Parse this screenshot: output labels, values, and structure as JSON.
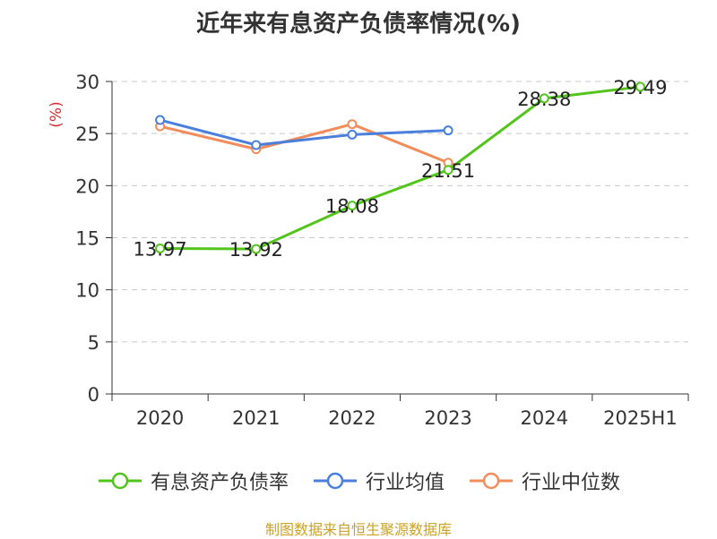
{
  "title": "近年来有息资产负债率情况(%)",
  "source": "制图数据来自恒生聚源数据库",
  "chart_data": {
    "type": "line",
    "title": "近年来有息资产负债率情况(%)",
    "ylabel": "(%)",
    "xlabel": "",
    "categories": [
      "2020",
      "2021",
      "2022",
      "2023",
      "2024",
      "2025H1"
    ],
    "ylim": [
      0,
      30
    ],
    "yticks": [
      0,
      5,
      10,
      15,
      20,
      25,
      30
    ],
    "grid": true,
    "legend_position": "bottom",
    "series": [
      {
        "name": "有息资产负债率",
        "color": "#52c41a",
        "values": [
          13.97,
          13.92,
          18.08,
          21.51,
          28.38,
          29.49
        ],
        "labels": [
          "13.97",
          "13.92",
          "18.08",
          "21.51",
          "28.38",
          "29.49"
        ]
      },
      {
        "name": "行业均值",
        "color": "#4a7fdc",
        "values": [
          26.3,
          23.9,
          24.9,
          25.3,
          null,
          null
        ]
      },
      {
        "name": "行业中位数",
        "color": "#f28c5a",
        "values": [
          25.7,
          23.5,
          25.9,
          22.2,
          null,
          null
        ]
      }
    ]
  }
}
